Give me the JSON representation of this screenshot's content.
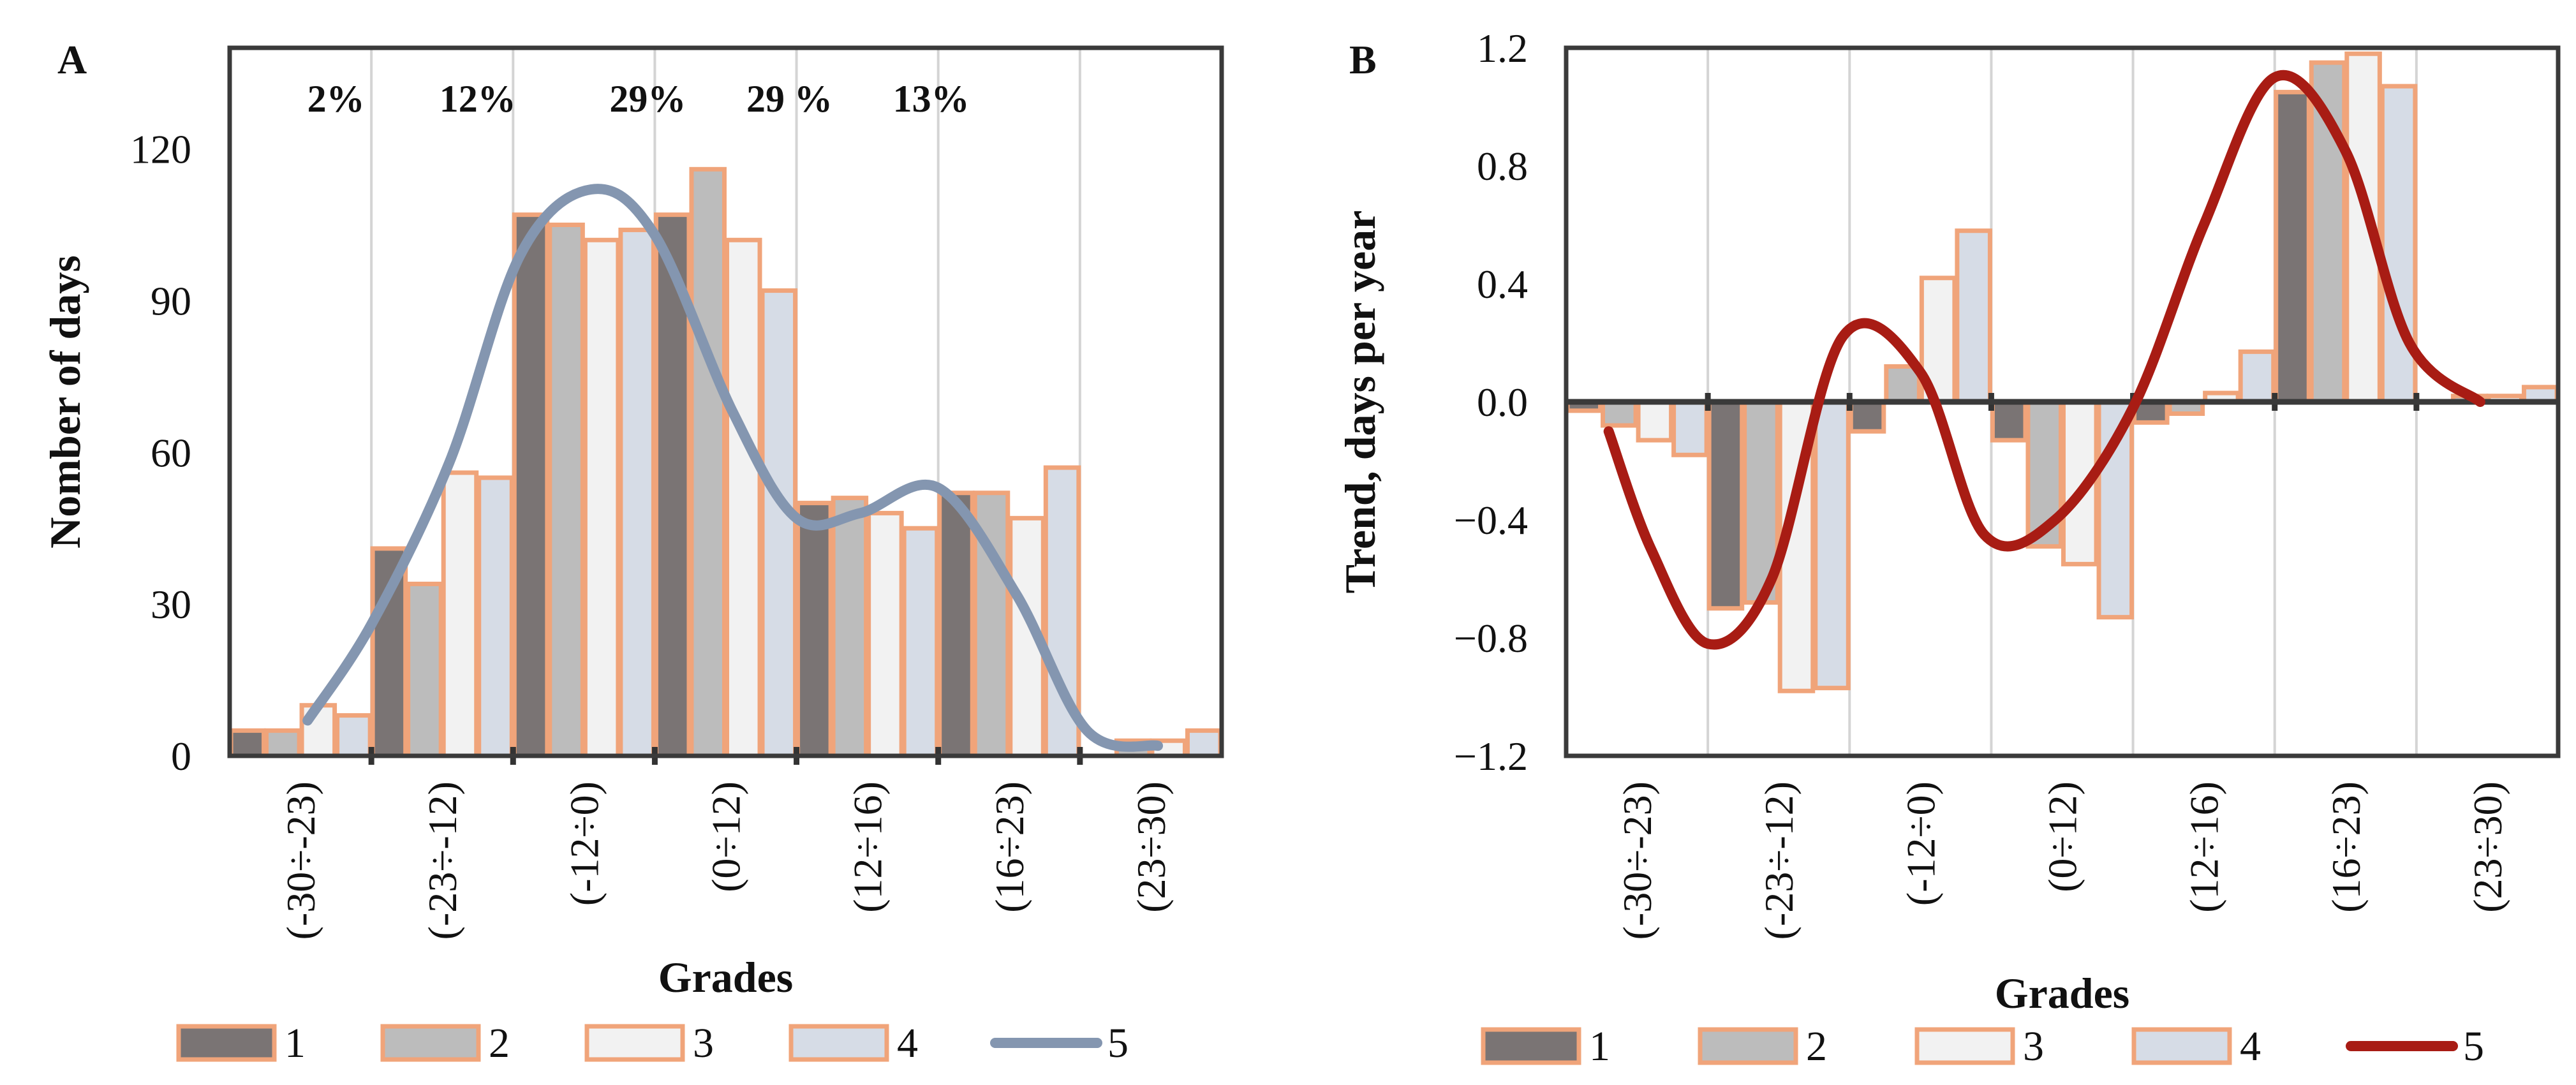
{
  "chart_data": [
    {
      "panel": "A",
      "type": "bar",
      "xlabel": "Grades",
      "ylabel": "Nomber of days",
      "ylim": [
        0,
        140
      ],
      "yticks": [
        0,
        30,
        60,
        90,
        120
      ],
      "categories": [
        "(-30÷-23)",
        "(-23÷-12)",
        "(-12÷0)",
        "(0÷12)",
        "(12÷16)",
        "(16÷23)",
        "(23÷30)"
      ],
      "series": [
        {
          "name": "1",
          "values": [
            5,
            41,
            107,
            107,
            50,
            52,
            0
          ]
        },
        {
          "name": "2",
          "values": [
            5,
            34,
            105,
            116,
            51,
            52,
            3
          ]
        },
        {
          "name": "3",
          "values": [
            10,
            56,
            102,
            102,
            48,
            47,
            3
          ]
        },
        {
          "name": "4",
          "values": [
            8,
            55,
            104,
            92,
            45,
            57,
            5
          ]
        }
      ],
      "curve": {
        "name": "5",
        "x": [
          0.55,
          1.0,
          1.55,
          2.05,
          2.55,
          3.0,
          3.55,
          4.0,
          4.45,
          5.0,
          5.55,
          6.05,
          6.55
        ],
        "y": [
          7,
          26,
          58,
          99,
          112,
          103,
          68,
          47,
          48,
          53,
          32,
          5,
          2
        ]
      },
      "percent_labels": [
        "2%",
        "12%",
        "29%",
        "29 %",
        "13%"
      ],
      "colors": {
        "s1": "#7a7474",
        "s2": "#bcbcbc",
        "s3": "#f2f2f2",
        "s4": "#d6dce6",
        "edge": "#f0a47a",
        "curve": "#8496b0"
      }
    },
    {
      "panel": "B",
      "type": "bar",
      "xlabel": "Grades",
      "ylabel": "Trend, days  per  year",
      "ylim": [
        -1.2,
        1.2
      ],
      "yticks": [
        -1.2,
        -0.8,
        -0.4,
        0.0,
        0.4,
        0.8,
        1.2
      ],
      "ytick_labels": [
        "−1.2",
        "−0.8",
        "−0.4",
        "0.0",
        "0.4",
        "0.8",
        "1.2"
      ],
      "categories": [
        "(-30÷-23)",
        "(-23÷-12)",
        "(-12÷0)",
        "(0÷12)",
        "(12÷16)",
        "(16÷23)",
        "(23÷30)"
      ],
      "series": [
        {
          "name": "1",
          "values": [
            -0.03,
            -0.7,
            -0.1,
            -0.13,
            -0.07,
            1.05,
            0.0
          ]
        },
        {
          "name": "2",
          "values": [
            -0.08,
            -0.68,
            0.12,
            -0.49,
            -0.04,
            1.15,
            0.02
          ]
        },
        {
          "name": "3",
          "values": [
            -0.13,
            -0.98,
            0.42,
            -0.55,
            0.03,
            1.18,
            0.02
          ]
        },
        {
          "name": "4",
          "values": [
            -0.18,
            -0.97,
            0.58,
            -0.73,
            0.17,
            1.07,
            0.05
          ]
        }
      ],
      "curve": {
        "name": "5",
        "x": [
          0.3,
          0.6,
          1.0,
          1.45,
          1.95,
          2.5,
          2.95,
          3.45,
          4.0,
          4.5,
          5.0,
          5.5,
          5.95,
          6.45
        ],
        "y": [
          -0.1,
          -0.5,
          -0.82,
          -0.6,
          0.22,
          0.1,
          -0.45,
          -0.4,
          -0.02,
          0.6,
          1.1,
          0.85,
          0.2,
          0.0
        ]
      },
      "colors": {
        "s1": "#7a7474",
        "s2": "#bcbcbc",
        "s3": "#f2f2f2",
        "s4": "#d6dce6",
        "edge": "#f0a47a",
        "curve": "#a81c14"
      }
    }
  ]
}
